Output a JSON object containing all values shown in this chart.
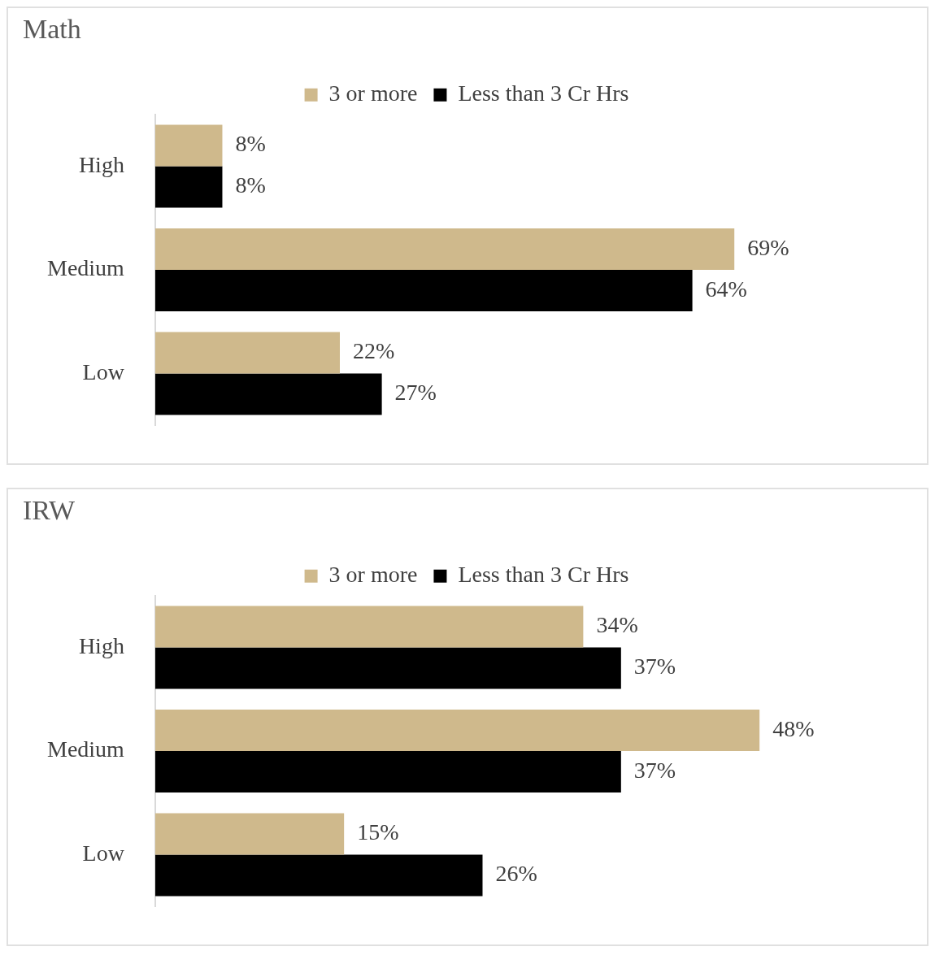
{
  "chart_data": [
    {
      "type": "bar",
      "orientation": "horizontal",
      "title": "Math",
      "categories": [
        "High",
        "Medium",
        "Low"
      ],
      "series": [
        {
          "name": "3 or more",
          "color": "#cfb98c",
          "values": [
            8,
            69,
            22
          ],
          "value_labels": [
            "8%",
            "69%",
            "22%"
          ]
        },
        {
          "name": "Less than 3 Cr Hrs",
          "color": "#000000",
          "values": [
            8,
            64,
            27
          ],
          "value_labels": [
            "8%",
            "64%",
            "27%"
          ]
        }
      ],
      "tick_labels": "y",
      "legend": "top"
    },
    {
      "type": "bar",
      "orientation": "horizontal",
      "title": "IRW",
      "categories": [
        "High",
        "Medium",
        "Low"
      ],
      "series": [
        {
          "name": "3 or more",
          "color": "#cfb98c",
          "values": [
            34,
            48,
            15
          ],
          "value_labels": [
            "34%",
            "48%",
            "15%"
          ]
        },
        {
          "name": "Less than 3 Cr Hrs",
          "color": "#000000",
          "values": [
            37,
            37,
            26
          ],
          "value_labels": [
            "37%",
            "37%",
            "26%"
          ]
        }
      ],
      "tick_labels": "y",
      "legend": "top"
    }
  ]
}
